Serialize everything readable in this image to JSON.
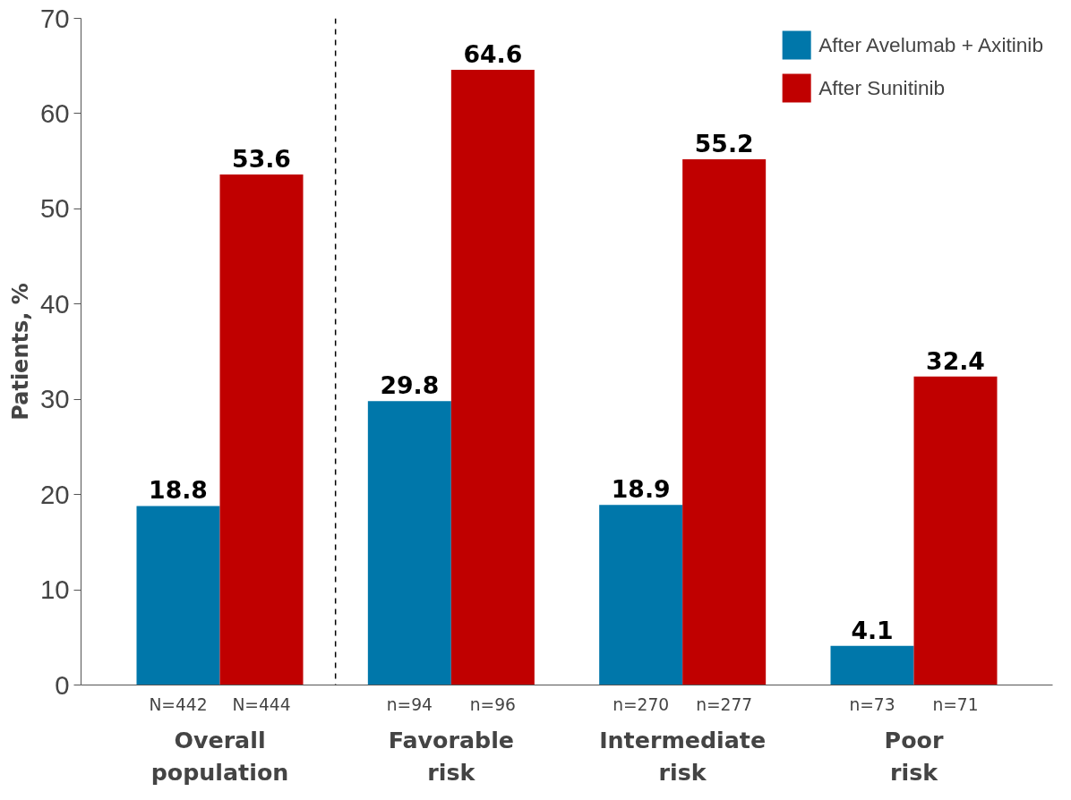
{
  "chart_data": {
    "type": "bar",
    "ylabel": "Patients, %",
    "categories": [
      "Overall population",
      "Favorable risk",
      "Intermediate risk",
      "Poor risk"
    ],
    "series": [
      {
        "name": "After Avelumab + Axitinib",
        "color": "#0077aa",
        "values": [
          18.8,
          29.8,
          18.9,
          4.1
        ]
      },
      {
        "name": "After Sunitinib",
        "color": "#c00000",
        "values": [
          53.6,
          64.6,
          55.2,
          32.4
        ]
      }
    ],
    "ylim": [
      0,
      70
    ],
    "yticks": [
      0,
      10,
      20,
      30,
      40,
      50,
      60,
      70
    ],
    "grid": false,
    "legend": "top right",
    "data_labels": true,
    "annotations": [
      "N=442",
      "N=444",
      "n=94",
      "n=96",
      "n=270",
      "n=277",
      "n=73",
      "n=71"
    ]
  }
}
